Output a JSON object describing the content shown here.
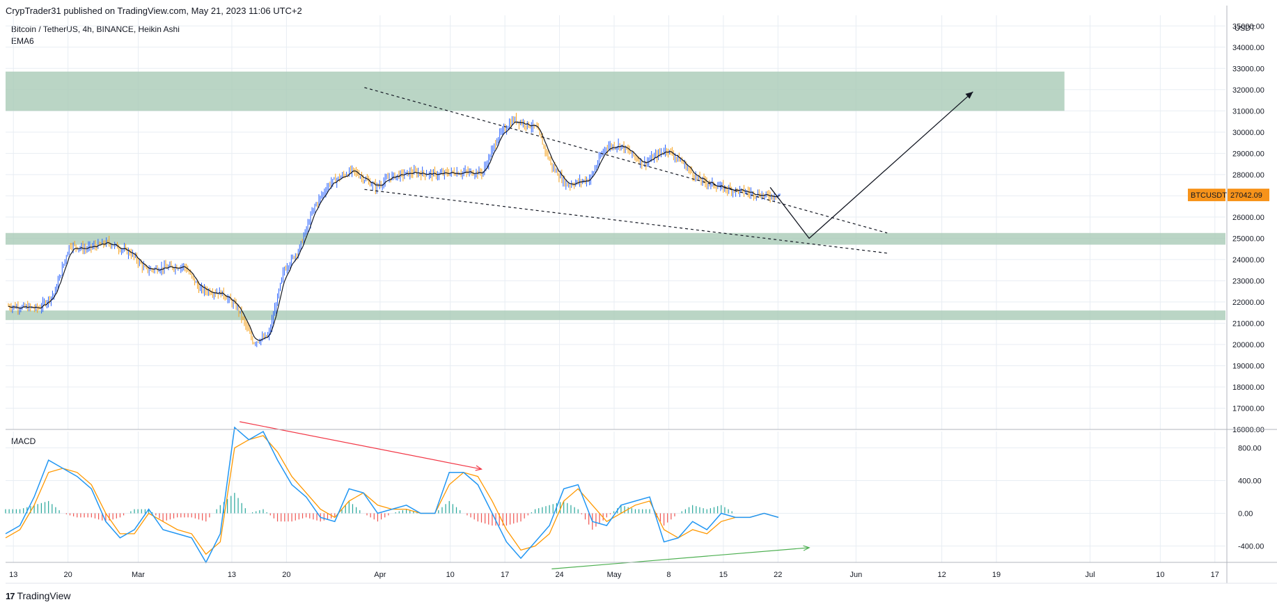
{
  "header": {
    "published": "CrypTrader31 published on TradingView.com, May 21, 2023 11:06 UTC+2"
  },
  "legend": {
    "symbol": "Bitcoin / TetherUS, 4h, BINANCE, Heikin Ashi",
    "indicator": "EMA6",
    "macd": "MACD"
  },
  "footer": {
    "brand": "TradingView"
  },
  "price_badge": {
    "symbol": "BTCUSDT",
    "price": "27042.09",
    "color": "#f7931a"
  },
  "colors": {
    "zone": "#a9cbb7",
    "up": "#2962ff",
    "down": "#f7a21b",
    "ema": "#131722",
    "macd_line": "#2196f3",
    "signal_line": "#ff9800",
    "hist_up": "#26a69a",
    "hist_down": "#ef5350",
    "arrow_red": "#f23645",
    "arrow_green": "#4caf50"
  },
  "chart_data": [
    {
      "type": "candlestick",
      "title": "",
      "yunit": "USDT",
      "ylim": [
        16000,
        35500
      ],
      "yticks": [
        "35000.00",
        "34000.00",
        "33000.00",
        "32000.00",
        "31000.00",
        "30000.00",
        "29000.00",
        "28000.00",
        "27000.00",
        "26000.00",
        "25000.00",
        "24000.00",
        "23000.00",
        "22000.00",
        "21000.00",
        "20000.00",
        "19000.00",
        "18000.00",
        "17000.00",
        "16000.00"
      ],
      "xticks": [
        "13",
        "20",
        "Mar",
        "13",
        "20",
        "Apr",
        "10",
        "17",
        "24",
        "May",
        "8",
        "15",
        "22",
        "Jun",
        "12",
        "19",
        "Jul",
        "10",
        "17"
      ],
      "price_path": [
        [
          0,
          21800
        ],
        [
          4,
          21700
        ],
        [
          6,
          22400
        ],
        [
          8,
          24700
        ],
        [
          10,
          24500
        ],
        [
          13,
          24800
        ],
        [
          16,
          24300
        ],
        [
          18,
          23500
        ],
        [
          20,
          23600
        ],
        [
          23,
          23700
        ],
        [
          25,
          22600
        ],
        [
          28,
          22400
        ],
        [
          30,
          21700
        ],
        [
          32,
          20100
        ],
        [
          34,
          20400
        ],
        [
          36,
          23500
        ],
        [
          38,
          24500
        ],
        [
          40,
          26500
        ],
        [
          42,
          27600
        ],
        [
          45,
          28200
        ],
        [
          48,
          27400
        ],
        [
          50,
          27900
        ],
        [
          53,
          28100
        ],
        [
          56,
          28000
        ],
        [
          58,
          28100
        ],
        [
          62,
          28100
        ],
        [
          64,
          29800
        ],
        [
          66,
          30600
        ],
        [
          69,
          30200
        ],
        [
          71,
          28400
        ],
        [
          73,
          27500
        ],
        [
          76,
          27800
        ],
        [
          78,
          29300
        ],
        [
          80,
          29400
        ],
        [
          83,
          28500
        ],
        [
          86,
          29200
        ],
        [
          88,
          28600
        ],
        [
          90,
          27800
        ],
        [
          93,
          27400
        ],
        [
          96,
          27200
        ],
        [
          99,
          27000
        ],
        [
          101,
          27042
        ]
      ],
      "zones": [
        {
          "from": 31000,
          "to": 32850,
          "x_end": 0.868
        },
        {
          "from": 24700,
          "to": 25250,
          "x_end": 1.0
        },
        {
          "from": 21150,
          "to": 21600,
          "x_end": 1.0
        }
      ],
      "trendlines": [
        {
          "style": "dashed",
          "from": [
            "2023-03-30",
            32100
          ],
          "to": [
            "2023-06-05",
            25250
          ]
        },
        {
          "style": "dashed",
          "from": [
            "2023-03-30",
            27300
          ],
          "to": [
            "2023-06-05",
            24300
          ]
        }
      ],
      "projection": [
        [
          "2023-05-21",
          27400
        ],
        [
          "2023-05-26",
          25000
        ],
        [
          "2023-06-16",
          31900
        ]
      ]
    },
    {
      "type": "line",
      "title": "MACD",
      "ylim": [
        -600,
        1000
      ],
      "yticks": [
        "800.00",
        "400.00",
        "0.00",
        "-400.00"
      ],
      "series": [
        {
          "values": [
            -250,
            -150,
            200,
            650,
            550,
            450,
            300,
            -100,
            -300,
            -200,
            50,
            -200,
            -250,
            -300,
            -600,
            -250,
            1050,
            900,
            1000,
            650,
            350,
            200,
            -50,
            -100,
            300,
            250,
            0,
            50,
            100,
            0,
            0,
            500,
            500,
            350,
            0,
            -350,
            -550,
            -350,
            -150,
            300,
            350,
            -100,
            -150,
            100,
            150,
            200,
            -350,
            -300,
            -100,
            -200,
            0,
            -50,
            -50,
            0,
            -50
          ]
        },
        {
          "values": [
            -300,
            -200,
            100,
            500,
            550,
            500,
            350,
            0,
            -250,
            -250,
            0,
            -100,
            -200,
            -250,
            -500,
            -350,
            800,
            900,
            950,
            750,
            450,
            250,
            50,
            -50,
            150,
            250,
            100,
            50,
            50,
            0,
            0,
            350,
            500,
            450,
            150,
            -200,
            -450,
            -400,
            -250,
            150,
            300,
            100,
            -100,
            0,
            100,
            150,
            -200,
            -300,
            -200,
            -250,
            -100,
            -50,
            -50,
            0,
            -50
          ]
        }
      ],
      "histogram": [
        50,
        50,
        100,
        150,
        0,
        -50,
        -50,
        -100,
        -50,
        50,
        50,
        -100,
        -50,
        -50,
        -100,
        100,
        250,
        0,
        50,
        -100,
        -100,
        -50,
        -100,
        -50,
        150,
        0,
        -100,
        0,
        50,
        0,
        0,
        150,
        0,
        -100,
        -150,
        -150,
        -100,
        50,
        100,
        150,
        50,
        -200,
        -50,
        100,
        50,
        50,
        -150,
        0,
        100,
        50,
        100,
        0,
        0,
        0,
        0
      ],
      "annotations": [
        {
          "color": "red",
          "from": [
            "2023-03-14",
            1120
          ],
          "to": [
            "2023-04-14",
            540
          ]
        },
        {
          "color": "green",
          "from": [
            "2023-04-23",
            -680
          ],
          "to": [
            "2023-05-26",
            -420
          ]
        }
      ]
    }
  ]
}
